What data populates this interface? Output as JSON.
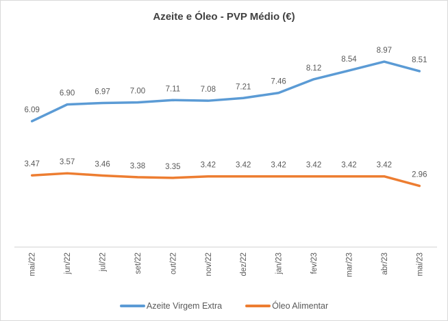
{
  "window": {
    "background": "#ffffff",
    "border_color": "#d9d9d9"
  },
  "chart_data": {
    "type": "line",
    "title": "Azeite e Óleo - PVP Médio (€)",
    "categories": [
      "mai/22",
      "jun/22",
      "jul/22",
      "set/22",
      "out/22",
      "nov/22",
      "dez/22",
      "jan/23",
      "fev/23",
      "mar/23",
      "abr/23",
      "mai/23"
    ],
    "series": [
      {
        "name": "Azeite Virgem Extra",
        "color": "#5B9BD5",
        "values": [
          6.09,
          6.9,
          6.97,
          7.0,
          7.11,
          7.08,
          7.21,
          7.46,
          8.12,
          8.54,
          8.97,
          8.51
        ]
      },
      {
        "name": "Óleo Alimentar",
        "color": "#ED7D31",
        "values": [
          3.47,
          3.57,
          3.46,
          3.38,
          3.35,
          3.42,
          3.42,
          3.42,
          3.42,
          3.42,
          3.42,
          2.96
        ]
      }
    ],
    "ylim": [
      0,
      10
    ],
    "grid": false,
    "data_labels": true,
    "legend_position": "bottom",
    "axis_color": "#d9d9d9",
    "label_color": "#595959",
    "title_color": "#404040"
  }
}
